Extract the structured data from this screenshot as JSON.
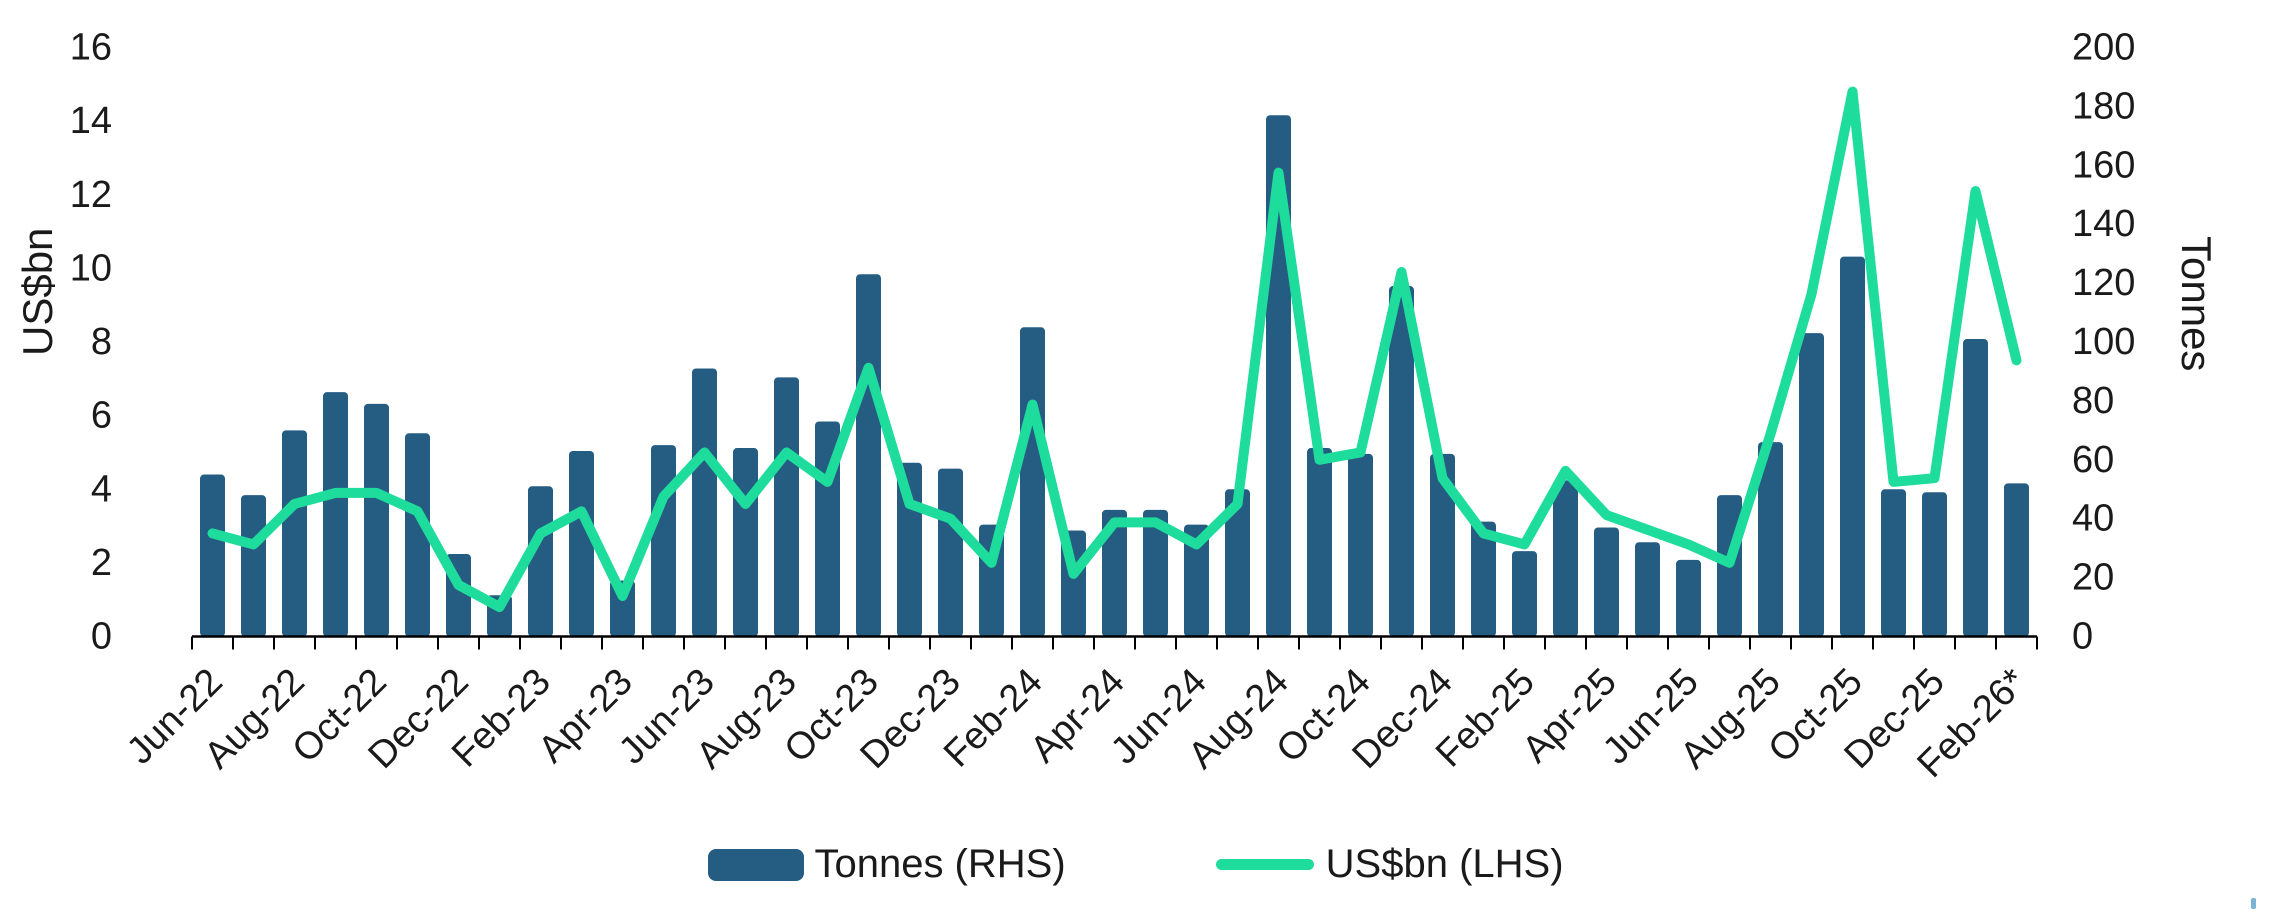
{
  "chart_data": {
    "type": "combo_bar_line",
    "title": "",
    "categories": [
      "Jun-22",
      "Jul-22",
      "Aug-22",
      "Sep-22",
      "Oct-22",
      "Nov-22",
      "Dec-22",
      "Jan-23",
      "Feb-23",
      "Mar-23",
      "Apr-23",
      "May-23",
      "Jun-23",
      "Jul-23",
      "Aug-23",
      "Sep-23",
      "Oct-23",
      "Nov-23",
      "Dec-23",
      "Jan-24",
      "Feb-24",
      "Mar-24",
      "Apr-24",
      "May-24",
      "Jun-24",
      "Jul-24",
      "Aug-24",
      "Sep-24",
      "Oct-24",
      "Nov-24",
      "Dec-24",
      "Jan-25",
      "Feb-25",
      "Mar-25",
      "Apr-25",
      "May-25",
      "Jun-25",
      "Jul-25",
      "Aug-25",
      "Sep-25",
      "Oct-25",
      "Nov-25",
      "Dec-25",
      "Jan-26",
      "Feb-26*"
    ],
    "series": [
      {
        "name": "Tonnes (RHS)",
        "type": "bar",
        "axis": "right",
        "values": [
          55,
          48,
          70,
          83,
          79,
          69,
          28,
          14,
          51,
          63,
          19,
          65,
          91,
          64,
          88,
          73,
          123,
          59,
          57,
          38,
          105,
          36,
          43,
          43,
          38,
          50,
          177,
          64,
          62,
          119,
          62,
          39,
          29,
          53,
          37,
          32,
          26,
          48,
          66,
          103,
          129,
          50,
          49,
          101,
          52
        ]
      },
      {
        "name": "US$bn (LHS)",
        "type": "line",
        "axis": "left",
        "values": [
          2.8,
          2.5,
          3.6,
          3.9,
          3.9,
          3.4,
          1.4,
          0.8,
          2.8,
          3.4,
          1.1,
          3.8,
          5.0,
          3.6,
          5.0,
          4.2,
          7.3,
          3.6,
          3.2,
          2.0,
          6.3,
          1.7,
          3.1,
          3.1,
          2.5,
          3.6,
          12.6,
          4.8,
          5.0,
          9.9,
          4.3,
          2.8,
          2.5,
          4.5,
          3.3,
          2.9,
          2.5,
          2.0,
          5.5,
          9.3,
          14.8,
          4.2,
          4.3,
          12.1,
          7.5
        ]
      }
    ],
    "left_axis": {
      "title": "US$bn",
      "min": 0,
      "max": 16,
      "step": 2,
      "ticks": [
        0,
        2,
        4,
        6,
        8,
        10,
        12,
        14,
        16
      ]
    },
    "right_axis": {
      "title": "Tonnes",
      "min": 0,
      "max": 200,
      "step": 20,
      "ticks": [
        0,
        20,
        40,
        60,
        80,
        100,
        120,
        140,
        160,
        180,
        200
      ]
    },
    "x_axis": {
      "label_every": 2,
      "visible_labels": [
        "Jun-22",
        "Aug-22",
        "Oct-22",
        "Dec-22",
        "Feb-23",
        "Apr-23",
        "Jun-23",
        "Aug-23",
        "Oct-23",
        "Dec-23",
        "Feb-24",
        "Apr-24",
        "Jun-24",
        "Aug-24",
        "Oct-24",
        "Dec-24",
        "Feb-25",
        "Apr-25",
        "Jun-25",
        "Aug-25",
        "Oct-25",
        "Dec-25",
        "Feb-26*"
      ],
      "label_rotation_deg": -45
    },
    "legend": {
      "position": "bottom",
      "entries": [
        "Tonnes (RHS)",
        "US$bn (LHS)"
      ]
    },
    "grid": "off",
    "colors": {
      "bar": "#255C82",
      "line": "#1EDC9C",
      "text": "#1a1a1a",
      "axis": "#000000",
      "background": "#FFFFFF",
      "corner_mark": "#7AB3D4"
    }
  },
  "legend": {
    "bar_label": "Tonnes (RHS)",
    "line_label": "US$bn (LHS)"
  },
  "axis_titles": {
    "left": "US$bn",
    "right": "Tonnes"
  }
}
